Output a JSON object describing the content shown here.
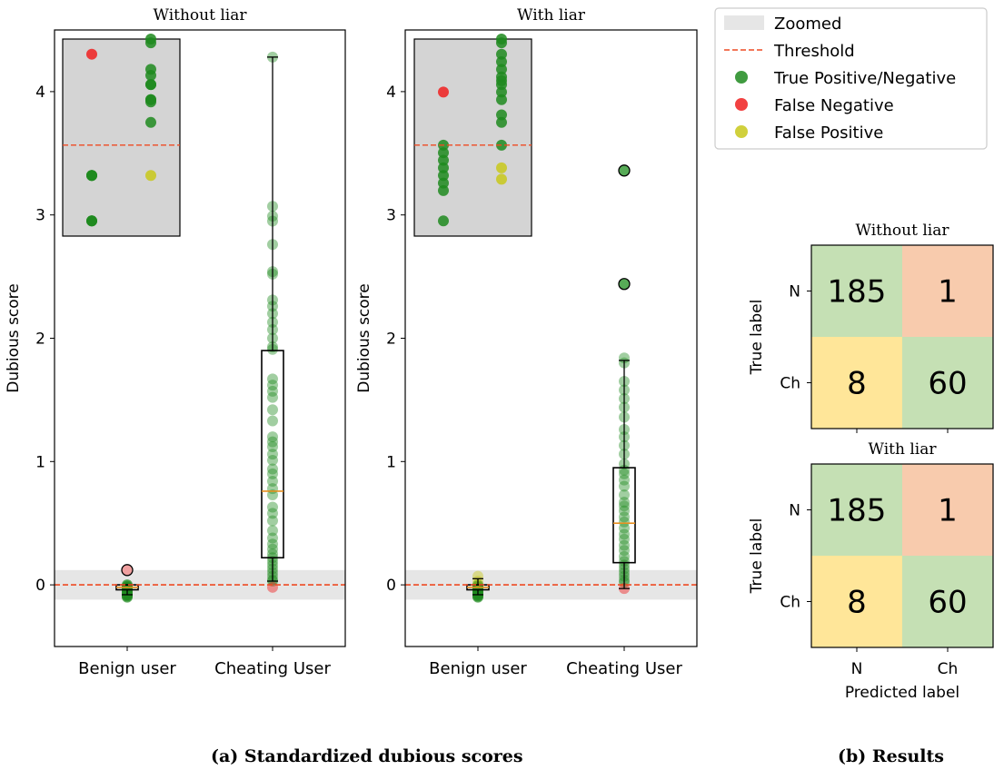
{
  "captions": {
    "a": "(a) Standardized dubious scores",
    "b": "(b) Results"
  },
  "legend": [
    {
      "label": "Zoomed",
      "kind": "band",
      "color": "#e6e6e6"
    },
    {
      "label": "Threshold",
      "kind": "dashed",
      "color": "#ee4a22"
    },
    {
      "label": "True Positive/Negative",
      "kind": "dot",
      "color": "#1f8a1f"
    },
    {
      "label": "False Negative",
      "kind": "dot",
      "color": "#f02020"
    },
    {
      "label": "False Positive",
      "kind": "dot",
      "color": "#c8c81a"
    }
  ],
  "chart_data": [
    {
      "type": "scatter",
      "title": "Without liar",
      "ylabel": "Dubious score",
      "xlabel": "",
      "categories": [
        "Benign user",
        "Cheating User"
      ],
      "ylim": [
        -0.5,
        4.5
      ],
      "yticks": [
        0,
        1,
        2,
        3,
        4
      ],
      "threshold": 0.0,
      "zoomed_band": [
        -0.12,
        0.12
      ],
      "boxes": [
        {
          "category": "Benign user",
          "q1": -0.04,
          "median": -0.02,
          "q3": 0.0,
          "whisker_low": -0.08,
          "whisker_high": 0.0
        },
        {
          "category": "Cheating User",
          "q1": 0.22,
          "median": 0.76,
          "q3": 1.9,
          "whisker_low": 0.03,
          "whisker_high": 4.28
        }
      ],
      "points": [
        {
          "category": "Benign user",
          "class": "tn",
          "values": [
            -0.1,
            -0.09,
            -0.08,
            -0.08,
            -0.07,
            -0.06,
            -0.05,
            -0.04,
            -0.03,
            -0.02,
            -0.01,
            0.0
          ]
        },
        {
          "category": "Benign user",
          "class": "fp",
          "values": [
            0.12
          ]
        },
        {
          "category": "Cheating User",
          "class": "tp",
          "values": [
            4.28,
            3.07,
            2.99,
            2.95,
            2.76,
            2.54,
            2.52,
            2.31,
            2.26,
            2.2,
            2.13,
            2.07,
            2.0,
            1.93,
            1.91,
            1.67,
            1.62,
            1.57,
            1.52,
            1.42,
            1.33,
            1.2,
            1.16,
            1.12,
            1.06,
            1.01,
            0.94,
            0.9,
            0.84,
            0.78,
            0.73,
            0.63,
            0.58,
            0.52,
            0.44,
            0.38,
            0.33,
            0.29,
            0.25,
            0.22,
            0.19,
            0.16,
            0.13,
            0.1,
            0.07,
            0.04,
            0.03
          ]
        },
        {
          "category": "Cheating User",
          "class": "fn",
          "values": [
            -0.02
          ]
        }
      ],
      "inset": {
        "ylim": [
          -0.12,
          0.14
        ],
        "points": [
          {
            "category": "Benign user",
            "class": "fn",
            "values": [
              0.12
            ]
          },
          {
            "category": "Benign user",
            "class": "tn",
            "values": [
              -0.04,
              -0.04,
              -0.04,
              -0.1,
              -0.1,
              -0.1
            ]
          },
          {
            "category": "Cheating User",
            "class": "tp",
            "values": [
              0.14,
              0.135,
              0.1,
              0.092,
              0.08,
              0.08,
              0.06,
              0.06,
              0.057,
              0.03
            ]
          },
          {
            "category": "Cheating User",
            "class": "fp",
            "values": [
              -0.04
            ]
          }
        ]
      }
    },
    {
      "type": "scatter",
      "title": "With liar",
      "ylabel": "Dubious score",
      "xlabel": "",
      "categories": [
        "Benign user",
        "Cheating User"
      ],
      "ylim": [
        -0.5,
        4.5
      ],
      "yticks": [
        0,
        1,
        2,
        3,
        4
      ],
      "threshold": 0.0,
      "zoomed_band": [
        -0.12,
        0.12
      ],
      "boxes": [
        {
          "category": "Benign user",
          "q1": -0.04,
          "median": -0.02,
          "q3": 0.0,
          "whisker_low": -0.08,
          "whisker_high": 0.05
        },
        {
          "category": "Cheating User",
          "q1": 0.18,
          "median": 0.5,
          "q3": 0.95,
          "whisker_low": -0.03,
          "whisker_high": 1.82
        }
      ],
      "points": [
        {
          "category": "Benign user",
          "class": "tn",
          "values": [
            -0.1,
            -0.09,
            -0.08,
            -0.07,
            -0.06,
            -0.05,
            -0.04,
            -0.03,
            -0.02,
            -0.01,
            0.0
          ]
        },
        {
          "category": "Benign user",
          "class": "fp",
          "values": [
            0.07,
            0.03
          ]
        },
        {
          "category": "Cheating User",
          "class": "tp_outlier",
          "values": [
            3.36,
            2.44
          ]
        },
        {
          "category": "Cheating User",
          "class": "tp",
          "values": [
            1.84,
            1.8,
            1.65,
            1.58,
            1.51,
            1.44,
            1.36,
            1.26,
            1.2,
            1.13,
            1.06,
            0.98,
            0.93,
            0.9,
            0.85,
            0.8,
            0.73,
            0.67,
            0.64,
            0.6,
            0.55,
            0.51,
            0.46,
            0.41,
            0.37,
            0.32,
            0.28,
            0.23,
            0.19,
            0.16,
            0.13,
            0.1,
            0.07,
            0.04,
            0.02
          ]
        },
        {
          "category": "Cheating User",
          "class": "fn",
          "values": [
            -0.03
          ]
        }
      ],
      "inset": {
        "ylim": [
          -0.12,
          0.14
        ],
        "points": [
          {
            "category": "Benign user",
            "class": "fn",
            "values": [
              0.07
            ]
          },
          {
            "category": "Benign user",
            "class": "tn",
            "values": [
              0.0,
              -0.01,
              -0.02,
              -0.03,
              -0.04,
              -0.05,
              -0.06,
              -0.1
            ]
          },
          {
            "category": "Cheating User",
            "class": "tp",
            "values": [
              0.14,
              0.135,
              0.12,
              0.11,
              0.1,
              0.09,
              0.085,
              0.08,
              0.07,
              0.06,
              0.04,
              0.03,
              0.0
            ]
          },
          {
            "category": "Cheating User",
            "class": "fp",
            "values": [
              -0.03,
              -0.045
            ]
          }
        ]
      }
    },
    {
      "type": "heatmap",
      "title": "Without liar",
      "xlabel": "",
      "ylabel": "True label",
      "row_labels": [
        "N",
        "Ch"
      ],
      "col_labels": [
        "N",
        "Ch"
      ],
      "cells": [
        [
          185,
          1
        ],
        [
          8,
          60
        ]
      ],
      "cell_colors": [
        [
          "#c5e0b4",
          "#f8cbad"
        ],
        [
          "#ffe699",
          "#c5e0b4"
        ]
      ]
    },
    {
      "type": "heatmap",
      "title": "With liar",
      "xlabel": "Predicted label",
      "ylabel": "True label",
      "row_labels": [
        "N",
        "Ch"
      ],
      "col_labels": [
        "N",
        "Ch"
      ],
      "cells": [
        [
          185,
          1
        ],
        [
          8,
          60
        ]
      ],
      "cell_colors": [
        [
          "#c5e0b4",
          "#f8cbad"
        ],
        [
          "#ffe699",
          "#c5e0b4"
        ]
      ]
    }
  ],
  "colors": {
    "tp": "#1f8a1f",
    "tp_faded": "#57ab57",
    "fn": "#f02020",
    "fp": "#c8c81a",
    "threshold": "#ee4a22",
    "median": "#e69020",
    "band": "#e6e6e6",
    "inset_bg": "#d4d4d4"
  }
}
